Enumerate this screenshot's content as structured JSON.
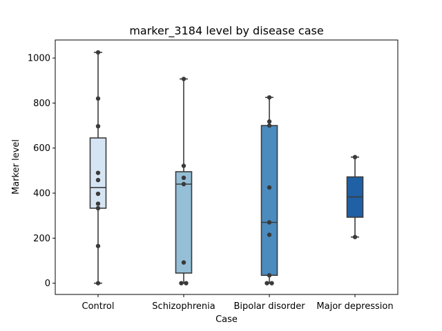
{
  "chart_data": {
    "type": "box",
    "title": "marker_3184 level by disease case",
    "xlabel": "Case",
    "ylabel": "Marker level",
    "ylim": [
      -50,
      1080
    ],
    "yticks": [
      0,
      200,
      400,
      600,
      800,
      1000
    ],
    "grid": false,
    "legend": "none",
    "categories": [
      "Control",
      "Schizophrenia",
      "Bipolar disorder",
      "Major depression"
    ],
    "boxes": [
      {
        "category": "Control",
        "color": "#d6e5f4",
        "whisker_low": 0,
        "q1": 333,
        "median": 425,
        "q3": 645,
        "whisker_high": 1025,
        "points": [
          1025,
          820,
          697,
          490,
          458,
          397,
          353,
          333,
          165,
          0
        ]
      },
      {
        "category": "Schizophrenia",
        "color": "#95bfd7",
        "whisker_low": 0,
        "q1": 45,
        "median": 440,
        "q3": 495,
        "whisker_high": 907,
        "points": [
          907,
          521,
          468,
          440,
          92,
          0,
          0
        ]
      },
      {
        "category": "Bipolar disorder",
        "color": "#4c8bbe",
        "whisker_low": 0,
        "q1": 35,
        "median": 270,
        "q3": 700,
        "whisker_high": 825,
        "points": [
          825,
          718,
          700,
          425,
          270,
          215,
          35,
          0,
          0
        ]
      },
      {
        "category": "Major depression",
        "color": "#2060a4",
        "whisker_low": 205,
        "q1": 293,
        "median": 383,
        "q3": 472,
        "whisker_high": 560,
        "points": [
          560,
          205
        ]
      }
    ]
  }
}
